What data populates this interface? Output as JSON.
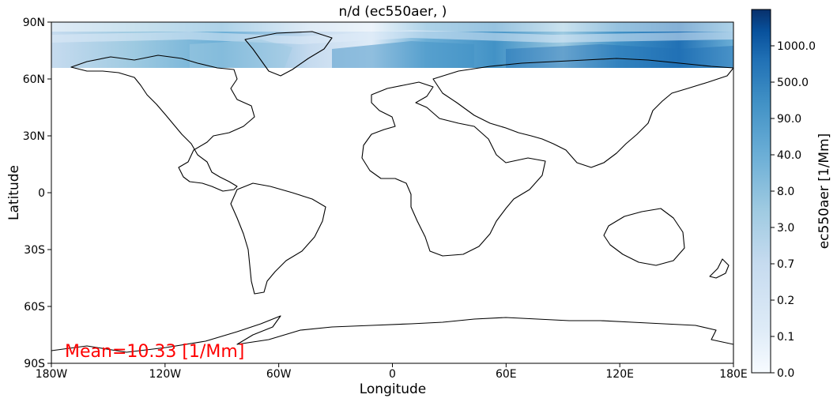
{
  "chart_data": {
    "type": "heatmap",
    "title": "n/d (ec550aer, )",
    "xlabel": "Longitude",
    "ylabel": "Latitude",
    "x_ticks": [
      "180W",
      "120W",
      "60W",
      "0",
      "60E",
      "120E",
      "180E"
    ],
    "y_ticks": [
      "90N",
      "60N",
      "30N",
      "0",
      "30S",
      "60S",
      "90S"
    ],
    "xlim": [
      -180,
      180
    ],
    "ylim": [
      -90,
      90
    ],
    "data_extent": {
      "lat_min": 66,
      "lat_max": 90,
      "lon_min": -180,
      "lon_max": 180
    },
    "colorbar": {
      "label": "ec550aer [1/Mm]",
      "colormap": "Blues",
      "tick_labels": [
        "0.0",
        "0.1",
        "0.2",
        "0.7",
        "3.0",
        "8.0",
        "40.0",
        "90.0",
        "500.0",
        "1000.0"
      ]
    },
    "annotation": "Mean=10.33 [1/Mm]",
    "annotation_color": "#ff0000"
  },
  "colors": {
    "frame": "#000000",
    "ocean_background": "#ffffff",
    "cmap_low": "#f7fbff",
    "cmap_mid": "#6baed6",
    "cmap_high": "#08306b"
  }
}
